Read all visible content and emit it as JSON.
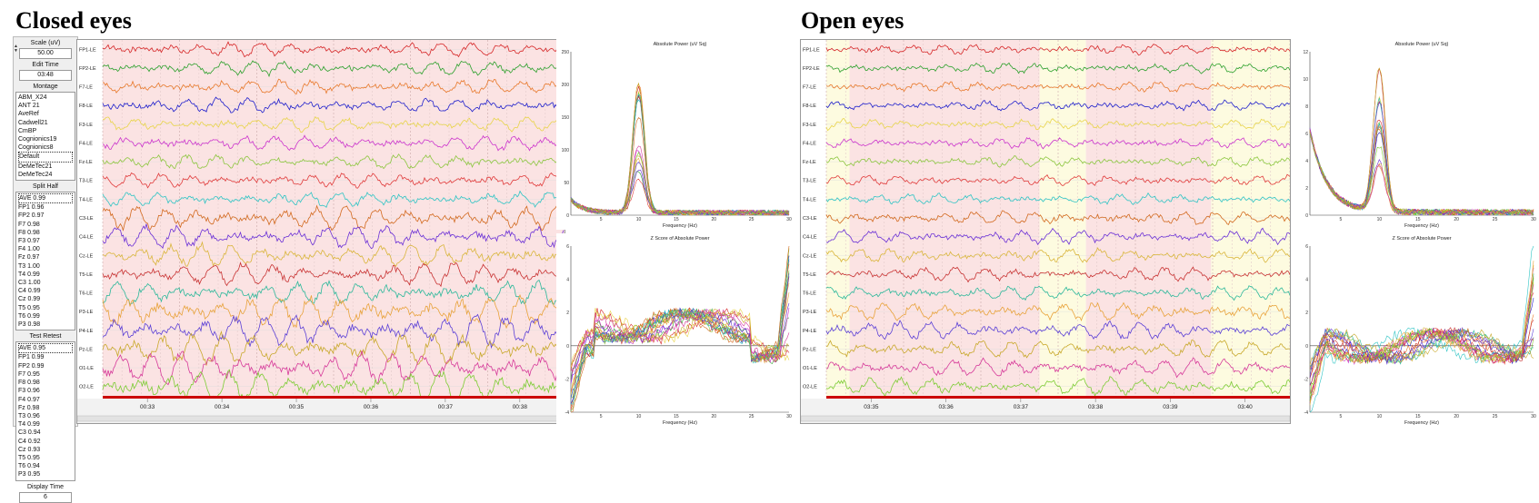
{
  "left_title": "Closed eyes",
  "right_title": "Open eyes",
  "sidebar": {
    "scale_label": "Scale (uV)",
    "scale_value": "50.00",
    "edit_time_label": "Edit Time",
    "edit_time_value": "03:48",
    "montage_label": "Montage",
    "montages": [
      "ABM_X24",
      "ANT 21",
      "AveRef",
      "Cadwell21",
      "CmBP",
      "Cognionics19",
      "Cognionics8",
      "Default",
      "DeMeTec21",
      "DeMeTec24"
    ],
    "montage_selected": "Default",
    "split_half_label": "Split Half",
    "split_half": [
      "AVE 0.99",
      "FP1 0.96",
      "FP2 0.97",
      "F7 0.98",
      "F8 0.98",
      "F3 0.97",
      "F4 1.00",
      "Fz 0.97",
      "T3 1.00",
      "T4 0.99",
      "C3 1.00",
      "C4 0.99",
      "Cz 0.99",
      "T5 0.95",
      "T6 0.99",
      "P3 0.98"
    ],
    "test_retest_label": "Test Retest",
    "test_retest": [
      "AVE 0.95",
      "FP1 0.99",
      "FP2 0.99",
      "F7 0.95",
      "F8 0.98",
      "F3 0.96",
      "F4 0.97",
      "Fz 0.98",
      "T3 0.96",
      "T4 0.99",
      "C3 0.94",
      "C4 0.92",
      "Cz 0.93",
      "T5 0.95",
      "T6 0.94",
      "P3 0.95"
    ],
    "display_time_label": "Display Time",
    "display_time_value": "6"
  },
  "channels": [
    "FP1-LE",
    "FP2-LE",
    "F7-LE",
    "F8-LE",
    "F3-LE",
    "F4-LE",
    "Fz-LE",
    "T3-LE",
    "T4-LE",
    "C3-LE",
    "C4-LE",
    "Cz-LE",
    "T5-LE",
    "T6-LE",
    "P3-LE",
    "P4-LE",
    "Pz-LE",
    "O1-LE",
    "O2-LE"
  ],
  "channel_colors": [
    "#d62728",
    "#2ca02c",
    "#e8782a",
    "#1f1fcc",
    "#e8d44a",
    "#cc33cc",
    "#8cc63f",
    "#e03a3a",
    "#2ec4c4",
    "#d2691e",
    "#6a2fd6",
    "#d9b53a",
    "#c83232",
    "#2cb89a",
    "#e8a23a",
    "#5a3fd6",
    "#c8a82a",
    "#d63a9a",
    "#7ccc33"
  ],
  "left_eeg": {
    "time_labels": [
      "00:33",
      "00:34",
      "00:35",
      "00:36",
      "00:37",
      "00:38"
    ],
    "alpha_amplitude": 1.0
  },
  "right_eeg": {
    "time_labels": [
      "03:35",
      "03:36",
      "03:37",
      "03:38",
      "03:39",
      "03:40"
    ],
    "alpha_amplitude": 0.45
  },
  "chart_data": [
    {
      "type": "line",
      "panel": "left-absolute-power",
      "title": "Absolute Power (uV Sq)",
      "xlabel": "Frequency (Hz)",
      "x_ticks": [
        5,
        10,
        15,
        20,
        25,
        30
      ],
      "y_ticks": [
        0,
        50,
        100,
        150,
        200,
        250
      ],
      "xlim": [
        1,
        30
      ],
      "ylim": [
        0,
        250
      ],
      "peak": {
        "x": 10,
        "y": 200
      }
    },
    {
      "type": "line",
      "panel": "left-z-score",
      "title": "Z Score of Absolute Power",
      "xlabel": "Frequency (Hz)",
      "x_ticks": [
        5,
        10,
        15,
        20,
        25,
        30
      ],
      "y_ticks": [
        -4,
        -2,
        0,
        2,
        4,
        6
      ],
      "xlim": [
        1,
        30
      ],
      "ylim": [
        -4,
        6
      ]
    },
    {
      "type": "line",
      "panel": "right-absolute-power",
      "title": "Absolute Power (uV Sq)",
      "xlabel": "Frequency (Hz)",
      "x_ticks": [
        5,
        10,
        15,
        20,
        25,
        30
      ],
      "y_ticks": [
        0,
        2,
        4,
        6,
        8,
        10,
        12
      ],
      "xlim": [
        1,
        30
      ],
      "ylim": [
        0,
        12
      ],
      "peak": {
        "x": 10,
        "y": 11
      }
    },
    {
      "type": "line",
      "panel": "right-z-score",
      "title": "Z Score of Absolute Power",
      "xlabel": "Frequency (Hz)",
      "x_ticks": [
        5,
        10,
        15,
        20,
        25,
        30
      ],
      "y_ticks": [
        -4,
        -2,
        0,
        2,
        4,
        6
      ],
      "xlim": [
        1,
        30
      ],
      "ylim": [
        -4,
        6
      ]
    }
  ]
}
